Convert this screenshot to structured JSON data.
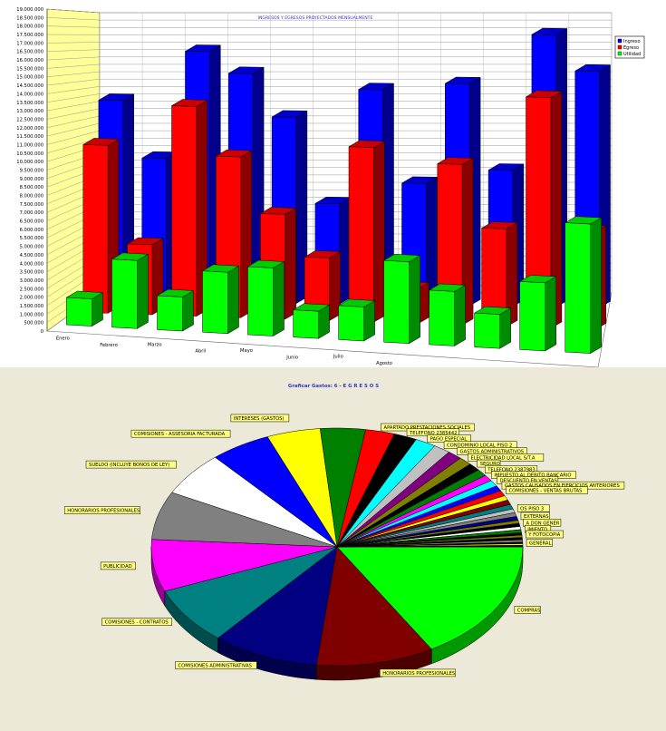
{
  "chart_data": [
    {
      "type": "bar",
      "title": "INGRESOS Y EGRESOS PROYECTADOS MENSUALMENTE",
      "categories": [
        "Enero",
        "Febrero",
        "Marzo",
        "Abril",
        "Mayo",
        "Junio",
        "Julio",
        "Agosto",
        "",
        "",
        "",
        ""
      ],
      "ylim": [
        0,
        19000000
      ],
      "yticks": [
        "0",
        "500.000",
        "1.000.000",
        "1.500.000",
        "2.000.000",
        "2.500.000",
        "3.000.000",
        "3.500.000",
        "4.000.000",
        "4.500.000",
        "5.000.000",
        "5.500.000",
        "6.000.000",
        "6.500.000",
        "7.000.000",
        "7.500.000",
        "8.000.000",
        "8.500.000",
        "9.000.000",
        "9.500.000",
        "10.000.000",
        "10.500.000",
        "11.000.000",
        "11.500.000",
        "12.000.000",
        "12.500.000",
        "13.000.000",
        "13.500.000",
        "14.000.000",
        "14.500.000",
        "15.000.000",
        "15.500.000",
        "16.000.000",
        "16.500.000",
        "17.000.000",
        "17.500.000",
        "18.000.000",
        "18.500.000",
        "19.000.000"
      ],
      "series": [
        {
          "name": "Ingreso",
          "color": "#0000ff",
          "values": [
            14000000,
            10000000,
            17500000,
            16000000,
            13000000,
            7000000,
            15000000,
            8500000,
            15500000,
            9500000,
            19000000,
            16500000
          ]
        },
        {
          "name": "Egreso",
          "color": "#ff0000",
          "values": [
            12000000,
            5000000,
            15000000,
            11500000,
            7500000,
            4500000,
            12500000,
            2500000,
            11500000,
            7000000,
            16500000,
            7000000
          ]
        },
        {
          "name": "Utilidad",
          "color": "#00ff00",
          "values": [
            2000000,
            5000000,
            2500000,
            4500000,
            5000000,
            2000000,
            2500000,
            6000000,
            4000000,
            2500000,
            5000000,
            9500000
          ]
        }
      ],
      "legend": "right",
      "grid": true
    },
    {
      "type": "pie",
      "title": "Graficar Gastos: 6 - E G R E S O S",
      "slices": [
        {
          "label": "COMPRAS",
          "value": 15.6,
          "color": "#00ff00"
        },
        {
          "label": "HONORARIOS PROFESIONALES",
          "value": 9.7,
          "color": "#800000"
        },
        {
          "label": "COMISIONES ADMINISTRATIVAS",
          "value": 8.8,
          "color": "#000080"
        },
        {
          "label": "COMISIONES - CONTRATOS",
          "value": 7.4,
          "color": "#008080"
        },
        {
          "label": "PUBLICIDAD",
          "value": 6.7,
          "color": "#ff00ff"
        },
        {
          "label": "HONORARIOS PROFESIONALES",
          "value": 6.2,
          "color": "#808080"
        },
        {
          "label": "SUELDO (INCLUYE BONOS DE LEY)",
          "value": 5.7,
          "color": "#ffffff"
        },
        {
          "label": "COMISIONES - ASSESORIA FACTURADA",
          "value": 5.0,
          "color": "#0000ff"
        },
        {
          "label": "INTERESES (GASTOS)",
          "value": 4.4,
          "color": "#ffff00"
        },
        {
          "label": "",
          "value": 3.7,
          "color": "#008000"
        },
        {
          "label": "APARTADO PRESTACIONES SOCIALES",
          "value": 2.4,
          "color": "#ff0000"
        },
        {
          "label": "TELEFONO 2385442",
          "value": 1.9,
          "color": "#000000"
        },
        {
          "label": "PAGO ESPECIAL",
          "value": 1.7,
          "color": "#00ffff"
        },
        {
          "label": "CONDOMINIO LOCAL PISO 2",
          "value": 1.4,
          "color": "#c0c0c0"
        },
        {
          "label": "GASTOS ADMINISTRATIVOS",
          "value": 1.2,
          "color": "#800080"
        },
        {
          "label": "ELECTRICIDAD LOCAL S/T.A",
          "value": 1.1,
          "color": "#808000"
        },
        {
          "label": "SEGURO",
          "value": 1.0,
          "color": "#000000"
        },
        {
          "label": "TELEFONO 2387983",
          "value": 0.9,
          "color": "#008000"
        },
        {
          "label": "IMPUESTO AL DEBITO BANCARIO",
          "value": 0.8,
          "color": "#ff00ff"
        },
        {
          "label": "DESCUENTO EN VENTAS",
          "value": 0.8,
          "color": "#00ffff"
        },
        {
          "label": "GASTOS CAUSADOS EN EJERCICIOS ANTERIORES",
          "value": 0.7,
          "color": "#0000ff"
        },
        {
          "label": "COMISIONES - VENTAS BRUTAS",
          "value": 0.7,
          "color": "#ff0000"
        },
        {
          "label": "",
          "value": 0.6,
          "color": "#ffff00"
        },
        {
          "label": "",
          "value": 0.6,
          "color": "#800000"
        },
        {
          "label": "",
          "value": 0.6,
          "color": "#008080"
        },
        {
          "label": "OS PISO 3",
          "value": 0.5,
          "color": "#c0c0c0"
        },
        {
          "label": "",
          "value": 0.5,
          "color": "#808080"
        },
        {
          "label": "EXTERNAS",
          "value": 0.5,
          "color": "#000080"
        },
        {
          "label": "",
          "value": 0.4,
          "color": "#808000"
        },
        {
          "label": "A DON GENER",
          "value": 0.4,
          "color": "#000000"
        },
        {
          "label": "",
          "value": 0.4,
          "color": "#ffffff"
        },
        {
          "label": "IMIENTO",
          "value": 0.4,
          "color": "#008000"
        },
        {
          "label": "",
          "value": 0.3,
          "color": "#000000"
        },
        {
          "label": "Y FOTOCOPIA",
          "value": 0.3,
          "color": "#808000"
        },
        {
          "label": "",
          "value": 0.3,
          "color": "#000000"
        },
        {
          "label": "",
          "value": 0.3,
          "color": "#808080"
        },
        {
          "label": "",
          "value": 0.2,
          "color": "#000000"
        },
        {
          "label": "GENERAL",
          "value": 0.2,
          "color": "#ffff00"
        },
        {
          "label": "",
          "value": 0.2,
          "color": "#000000"
        }
      ]
    }
  ]
}
